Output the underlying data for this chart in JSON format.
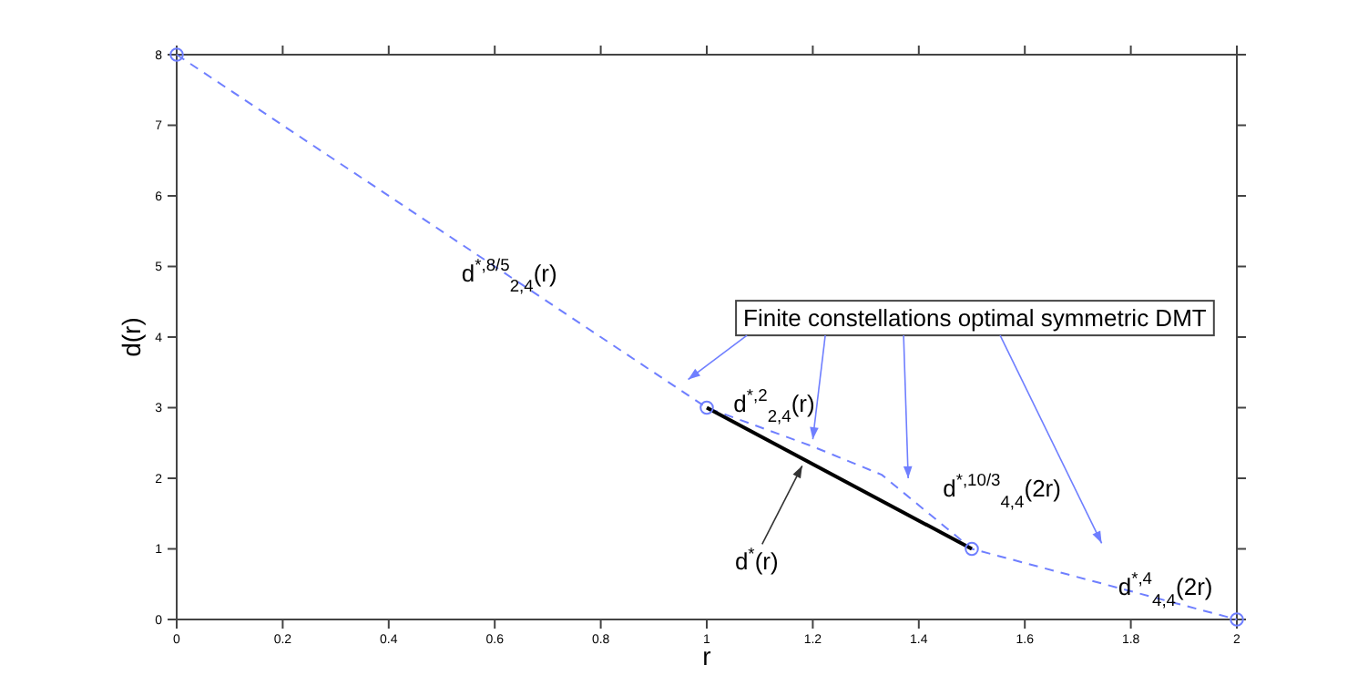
{
  "chart_data": {
    "type": "line",
    "xlabel": "r",
    "ylabel": "d(r)",
    "xlim": [
      0,
      2
    ],
    "ylim": [
      0,
      8
    ],
    "xticks": [
      0,
      0.2,
      0.4,
      0.6,
      0.8,
      1,
      1.2,
      1.4,
      1.6,
      1.8,
      2
    ],
    "yticks": [
      0,
      1,
      2,
      3,
      4,
      5,
      6,
      7,
      8
    ],
    "grid": false,
    "series": [
      {
        "type": "line",
        "line_style": "dashed",
        "marker": "none",
        "color": "#6f7fff",
        "x": [
          0,
          1,
          1.2,
          1.33,
          1.5,
          2
        ],
        "values": [
          8,
          3,
          2.45,
          2.05,
          1,
          0
        ]
      },
      {
        "type": "line",
        "line_style": "solid",
        "marker": "none",
        "color": "#000000",
        "x": [
          1,
          1.5
        ],
        "values": [
          3,
          1
        ]
      },
      {
        "type": "scatter",
        "marker": "circle",
        "color": "#6f7fff",
        "x": [
          0,
          1,
          1.5,
          2
        ],
        "values": [
          8,
          3,
          1,
          0
        ]
      }
    ],
    "annotations": [
      {
        "text": "d$^{*,8/5}$$_{2,4}$(r)",
        "x": 0.6,
        "y": 5
      },
      {
        "text": "d$^{*,2}$$_{2,4}$(r)",
        "x": 1,
        "y": 3
      },
      {
        "text": "d$^{*,10/3}$$_{4,4}$(2r)",
        "x": 1.33,
        "y": 2.05
      },
      {
        "text": "d$^{*}$(r)",
        "x": 1.18,
        "y": 2.28
      },
      {
        "text": "d$^{*,4}$$_{4,4}$(2r)",
        "x": 1.8,
        "y": 0.4
      },
      {
        "text": "Finite constellations optimal symmetric DMT",
        "x": 1.2,
        "y": 2.45
      }
    ]
  }
}
